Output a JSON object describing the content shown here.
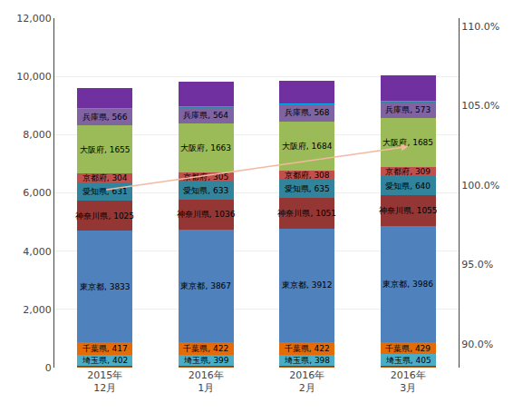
{
  "chart_data": {
    "type": "bar",
    "stacked": true,
    "grid": true,
    "categories": [
      "2015年\n12月",
      "2016年\n1月",
      "2016年\n2月",
      "2016年\n3月"
    ],
    "series": [
      {
        "color": "#7030A0",
        "values": [
          15,
          15,
          15,
          15
        ]
      },
      {
        "color": "#FF0000",
        "values": [
          10,
          10,
          10,
          10
        ]
      },
      {
        "color": "#C55A11",
        "values": [
          10,
          10,
          10,
          10
        ]
      },
      {
        "color": "#843C0C",
        "values": [
          15,
          15,
          15,
          15
        ]
      },
      {
        "name": "埼玉県",
        "color": "#4BACC6",
        "values": [
          402,
          399,
          398,
          405
        ],
        "value_labels": [
          "埼玉県, 402",
          "埼玉県, 399",
          "埼玉県, 398",
          "埼玉県, 405"
        ]
      },
      {
        "name": "千葉県",
        "color": "#E36C09",
        "values": [
          417,
          422,
          422,
          429
        ],
        "value_labels": [
          "千葉県, 417",
          "千葉県, 422",
          "千葉県, 422",
          "千葉県, 429"
        ]
      },
      {
        "name": "東京都",
        "color": "#4F81BD",
        "values": [
          3833,
          3867,
          3912,
          3986
        ],
        "value_labels": [
          "東京都, 3833",
          "東京都, 3867",
          "東京都, 3912",
          "東京都, 3986"
        ]
      },
      {
        "name": "神奈川県",
        "color": "#943634",
        "values": [
          1025,
          1036,
          1051,
          1055
        ],
        "value_labels": [
          "神奈川県, 1025",
          "神奈川県, 1036",
          "神奈川県, 1051",
          "神奈川県, 1055"
        ]
      },
      {
        "name": "愛知県",
        "color": "#31849B",
        "values": [
          631,
          633,
          635,
          640
        ],
        "value_labels": [
          "愛知県, 631",
          "愛知県, 633",
          "愛知県, 635",
          "愛知県, 640"
        ]
      },
      {
        "name": "京都府",
        "color": "#C0504D",
        "values": [
          304,
          305,
          308,
          309
        ],
        "value_labels": [
          "京都府, 304",
          "京都府, 305",
          "京都府, 308",
          "京都府, 309"
        ]
      },
      {
        "name": "大阪府",
        "color": "#9BBB59",
        "values": [
          1655,
          1663,
          1684,
          1685
        ],
        "value_labels": [
          "大阪府, 1655",
          "大阪府, 1663",
          "大阪府, 1684",
          "大阪府, 1685"
        ]
      },
      {
        "name": "兵庫県",
        "color": "#8064A2",
        "values": [
          566,
          564,
          568,
          573
        ],
        "value_labels": [
          "兵庫県, 566",
          "兵庫県, 564",
          "兵庫県, 568",
          "兵庫県, 573"
        ]
      },
      {
        "color": "#31849B",
        "values": [
          20,
          22,
          22,
          23
        ]
      },
      {
        "color": "#00B0F0",
        "values": [
          8,
          9,
          9,
          9
        ]
      },
      {
        "color": "#7030A0",
        "values": [
          700,
          850,
          780,
          860
        ]
      }
    ],
    "ylim": [
      0,
      12000
    ],
    "yticks": [
      0,
      {
        "value": 2000,
        "label": "2,000"
      },
      {
        "value": 4000,
        "label": "4,000"
      },
      {
        "value": 6000,
        "label": "6,000"
      },
      {
        "value": 8000,
        "label": "8,000"
      },
      {
        "value": 10000,
        "label": "10,000"
      },
      {
        "value": 12000,
        "label": "12,000"
      }
    ],
    "y2lim": [
      0.885,
      1.105
    ],
    "y2ticks": [
      {
        "value": 0.9,
        "label": "90.0%"
      },
      {
        "value": 0.95,
        "label": "95.0%"
      },
      {
        "value": 1.0,
        "label": "100.0%"
      },
      {
        "value": 1.05,
        "label": "105.0%"
      },
      {
        "value": 1.1,
        "label": "110.0%"
      }
    ],
    "annotations": [
      {
        "type": "arrow",
        "x_start": "2015年\n12月",
        "y_start": 6105,
        "x_end": "2016年\n3月",
        "y_end": 7589,
        "color": "#F4B8A0"
      }
    ]
  }
}
